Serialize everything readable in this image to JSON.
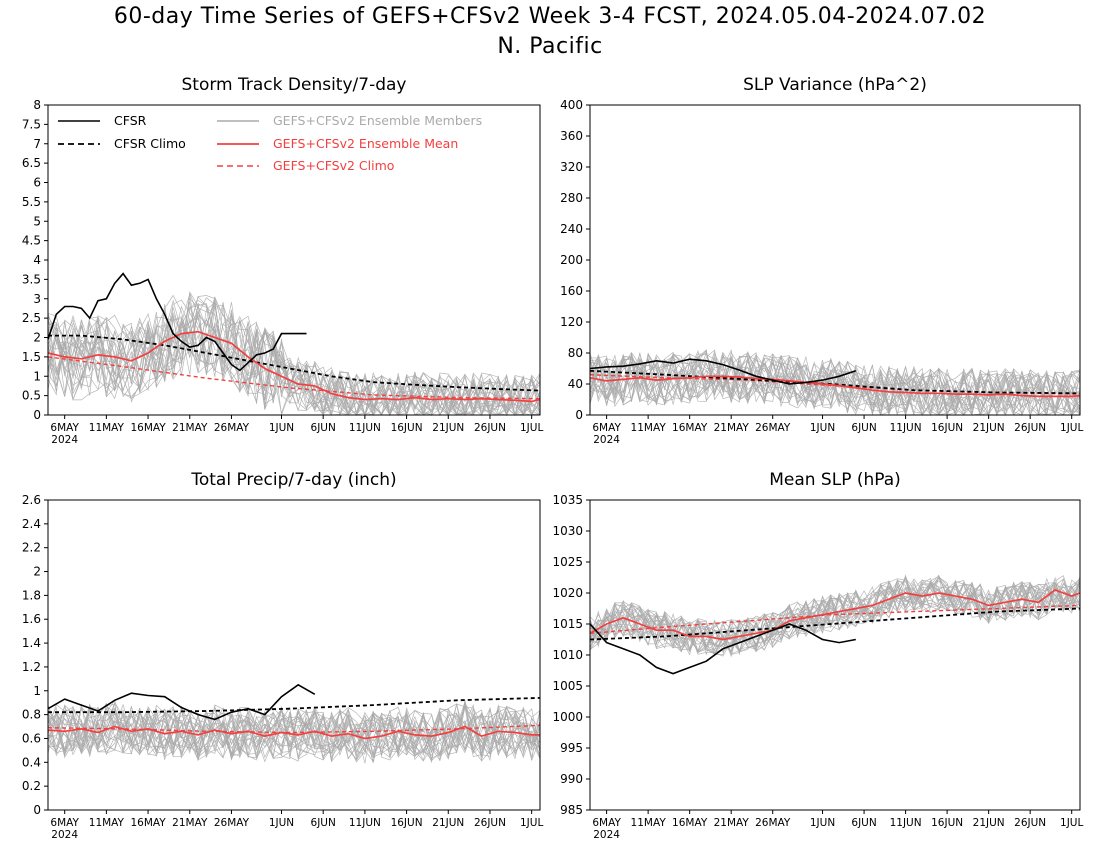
{
  "title": "60-day Time Series of GEFS+CFSv2 Week 3-4 FCST, 2024.05.04-2024.07.02",
  "subtitle": "N. Pacific",
  "x_ticks": [
    "6MAY",
    "11MAY",
    "16MAY",
    "21MAY",
    "26MAY",
    "1JUN",
    "6JUN",
    "11JUN",
    "16JUN",
    "21JUN",
    "26JUN",
    "1JUL"
  ],
  "x_year": "2024",
  "legend": {
    "cfsr": "CFSR",
    "cfsr_climo": "CFSR Climo",
    "members": "GEFS+CFSv2 Ensemble Members",
    "mean": "GEFS+CFSv2 Ensemble Mean",
    "climo": "GEFS+CFSv2 Climo"
  },
  "colors": {
    "cfsr": "#000000",
    "members": "#aaaaaa",
    "mean": "#f24040"
  },
  "chart_data": [
    {
      "type": "line",
      "title": "Storm Track Density/7-day",
      "x_range_days": [
        1,
        60
      ],
      "ylim": [
        0,
        8
      ],
      "yticks": [
        "0",
        "0.5",
        "1",
        "1.5",
        "2",
        "2.5",
        "3",
        "3.5",
        "4",
        "4.5",
        "5",
        "5.5",
        "6",
        "6.5",
        "7",
        "7.5",
        "8"
      ],
      "series": [
        {
          "name": "CFSR",
          "x": [
            1,
            2,
            3,
            4,
            5,
            6,
            7,
            8,
            9,
            10,
            11,
            12,
            13,
            14,
            15,
            16,
            17,
            18,
            19,
            20,
            21,
            22,
            23,
            24,
            25,
            26,
            27,
            28,
            29,
            30,
            31,
            32
          ],
          "values": [
            1.95,
            2.6,
            2.8,
            2.8,
            2.75,
            2.5,
            2.95,
            3.0,
            3.4,
            3.65,
            3.35,
            3.4,
            3.5,
            3.0,
            2.6,
            2.1,
            1.9,
            1.75,
            1.8,
            2.0,
            1.9,
            1.6,
            1.3,
            1.15,
            1.35,
            1.55,
            1.6,
            1.7,
            2.1,
            2.1,
            2.1,
            2.1
          ]
        },
        {
          "name": "CFSR Climo",
          "x": [
            1,
            5,
            10,
            15,
            20,
            25,
            30,
            35,
            40,
            45,
            50,
            55,
            60
          ],
          "values": [
            2.05,
            2.05,
            1.95,
            1.8,
            1.6,
            1.4,
            1.2,
            1.0,
            0.85,
            0.78,
            0.72,
            0.67,
            0.63
          ]
        },
        {
          "name": "GEFS+CFSv2 Ensemble Mean",
          "x": [
            1,
            3,
            5,
            7,
            9,
            11,
            13,
            15,
            17,
            19,
            21,
            23,
            25,
            27,
            29,
            31,
            33,
            35,
            37,
            39,
            41,
            43,
            45,
            47,
            49,
            51,
            53,
            55,
            57,
            59,
            60
          ],
          "values": [
            1.6,
            1.5,
            1.45,
            1.55,
            1.5,
            1.4,
            1.6,
            1.9,
            2.1,
            2.15,
            2.0,
            1.85,
            1.5,
            1.2,
            1.0,
            0.8,
            0.75,
            0.55,
            0.45,
            0.4,
            0.42,
            0.4,
            0.45,
            0.4,
            0.42,
            0.4,
            0.42,
            0.4,
            0.38,
            0.35,
            0.4
          ]
        },
        {
          "name": "GEFS+CFSv2 Climo",
          "x": [
            1,
            10,
            20,
            30,
            40,
            50,
            60
          ],
          "values": [
            1.5,
            1.25,
            0.95,
            0.7,
            0.52,
            0.45,
            0.42
          ]
        }
      ]
    },
    {
      "type": "line",
      "title": "SLP Variance (hPa^2)",
      "x_range_days": [
        1,
        60
      ],
      "ylim": [
        0,
        400
      ],
      "yticks": [
        "0",
        "40",
        "80",
        "120",
        "160",
        "200",
        "240",
        "280",
        "320",
        "360",
        "400"
      ],
      "series": [
        {
          "name": "CFSR",
          "x": [
            1,
            3,
            5,
            7,
            9,
            11,
            13,
            15,
            17,
            19,
            21,
            23,
            25,
            27,
            29,
            31,
            33
          ],
          "values": [
            60,
            62,
            63,
            66,
            70,
            67,
            72,
            70,
            65,
            58,
            50,
            45,
            40,
            42,
            45,
            50,
            57
          ]
        },
        {
          "name": "CFSR Climo",
          "x": [
            1,
            10,
            20,
            30,
            40,
            50,
            60
          ],
          "values": [
            57,
            52,
            46,
            40,
            32,
            29,
            28
          ]
        },
        {
          "name": "GEFS+CFSv2 Ensemble Mean",
          "x": [
            1,
            3,
            5,
            7,
            9,
            11,
            13,
            15,
            17,
            19,
            21,
            23,
            25,
            27,
            29,
            31,
            33,
            35,
            37,
            39,
            41,
            43,
            45,
            47,
            49,
            51,
            53,
            55,
            57,
            59,
            60
          ],
          "values": [
            48,
            44,
            46,
            48,
            45,
            47,
            48,
            50,
            50,
            49,
            47,
            46,
            44,
            42,
            40,
            38,
            35,
            32,
            30,
            29,
            28,
            28,
            27,
            27,
            26,
            27,
            25,
            24,
            24,
            24,
            25
          ]
        },
        {
          "name": "GEFS+CFSv2 Climo",
          "x": [
            1,
            10,
            20,
            30,
            40,
            50,
            60
          ],
          "values": [
            52,
            48,
            45,
            38,
            32,
            29,
            27
          ]
        }
      ]
    },
    {
      "type": "line",
      "title": "Total Precip/7-day (inch)",
      "x_range_days": [
        1,
        60
      ],
      "ylim": [
        0,
        2.6
      ],
      "yticks": [
        "0",
        "0.2",
        "0.4",
        "0.6",
        "0.8",
        "1",
        "1.2",
        "1.4",
        "1.6",
        "1.8",
        "2",
        "2.2",
        "2.4",
        "2.6"
      ],
      "series": [
        {
          "name": "CFSR",
          "x": [
            1,
            3,
            5,
            7,
            9,
            11,
            13,
            15,
            17,
            19,
            21,
            23,
            25,
            27,
            29,
            31,
            33
          ],
          "values": [
            0.85,
            0.93,
            0.88,
            0.83,
            0.92,
            0.98,
            0.96,
            0.95,
            0.86,
            0.8,
            0.76,
            0.82,
            0.85,
            0.8,
            0.95,
            1.05,
            0.97
          ]
        },
        {
          "name": "CFSR Climo",
          "x": [
            1,
            10,
            20,
            30,
            40,
            50,
            60
          ],
          "values": [
            0.82,
            0.82,
            0.83,
            0.85,
            0.88,
            0.92,
            0.94
          ]
        },
        {
          "name": "GEFS+CFSv2 Ensemble Mean",
          "x": [
            1,
            3,
            5,
            7,
            9,
            11,
            13,
            15,
            17,
            19,
            21,
            23,
            25,
            27,
            29,
            31,
            33,
            35,
            37,
            39,
            41,
            43,
            45,
            47,
            49,
            51,
            53,
            55,
            57,
            59,
            60
          ],
          "values": [
            0.67,
            0.66,
            0.68,
            0.65,
            0.7,
            0.66,
            0.68,
            0.64,
            0.66,
            0.63,
            0.67,
            0.64,
            0.66,
            0.62,
            0.65,
            0.63,
            0.66,
            0.62,
            0.64,
            0.6,
            0.62,
            0.66,
            0.63,
            0.62,
            0.65,
            0.7,
            0.62,
            0.66,
            0.65,
            0.63,
            0.63
          ]
        },
        {
          "name": "GEFS+CFSv2 Climo",
          "x": [
            1,
            10,
            20,
            30,
            40,
            50,
            60
          ],
          "values": [
            0.69,
            0.68,
            0.66,
            0.65,
            0.66,
            0.68,
            0.71
          ]
        }
      ]
    },
    {
      "type": "line",
      "title": "Mean SLP (hPa)",
      "x_range_days": [
        1,
        60
      ],
      "ylim": [
        985,
        1035
      ],
      "yticks": [
        "985",
        "990",
        "995",
        "1000",
        "1005",
        "1010",
        "1015",
        "1020",
        "1025",
        "1030",
        "1035"
      ],
      "series": [
        {
          "name": "CFSR",
          "x": [
            1,
            3,
            5,
            7,
            9,
            11,
            13,
            15,
            17,
            19,
            21,
            23,
            25,
            27,
            29,
            31,
            33
          ],
          "values": [
            1015,
            1012,
            1011,
            1010,
            1008,
            1007,
            1008,
            1009,
            1011,
            1012,
            1013,
            1014,
            1015,
            1014,
            1012.5,
            1012,
            1012.5
          ]
        },
        {
          "name": "CFSR Climo",
          "x": [
            1,
            10,
            20,
            30,
            40,
            50,
            60
          ],
          "values": [
            1012.5,
            1013,
            1014,
            1015,
            1016,
            1017,
            1017.5
          ]
        },
        {
          "name": "GEFS+CFSv2 Ensemble Mean",
          "x": [
            1,
            3,
            5,
            7,
            9,
            11,
            13,
            15,
            17,
            19,
            21,
            23,
            25,
            27,
            29,
            31,
            33,
            35,
            37,
            39,
            41,
            43,
            45,
            47,
            49,
            51,
            53,
            55,
            57,
            59,
            60
          ],
          "values": [
            1013.5,
            1015,
            1016,
            1015,
            1014,
            1014,
            1013,
            1013,
            1012.5,
            1013,
            1013.5,
            1014,
            1015.5,
            1016,
            1016.5,
            1017,
            1017.5,
            1018,
            1019,
            1020,
            1019.5,
            1020,
            1019.5,
            1019,
            1018,
            1018.5,
            1019,
            1018.5,
            1020.5,
            1019.5,
            1020
          ]
        },
        {
          "name": "GEFS+CFSv2 Climo",
          "x": [
            1,
            10,
            20,
            30,
            40,
            50,
            60
          ],
          "values": [
            1013.5,
            1014.5,
            1015.5,
            1016.5,
            1017,
            1017.5,
            1018
          ]
        }
      ]
    }
  ]
}
